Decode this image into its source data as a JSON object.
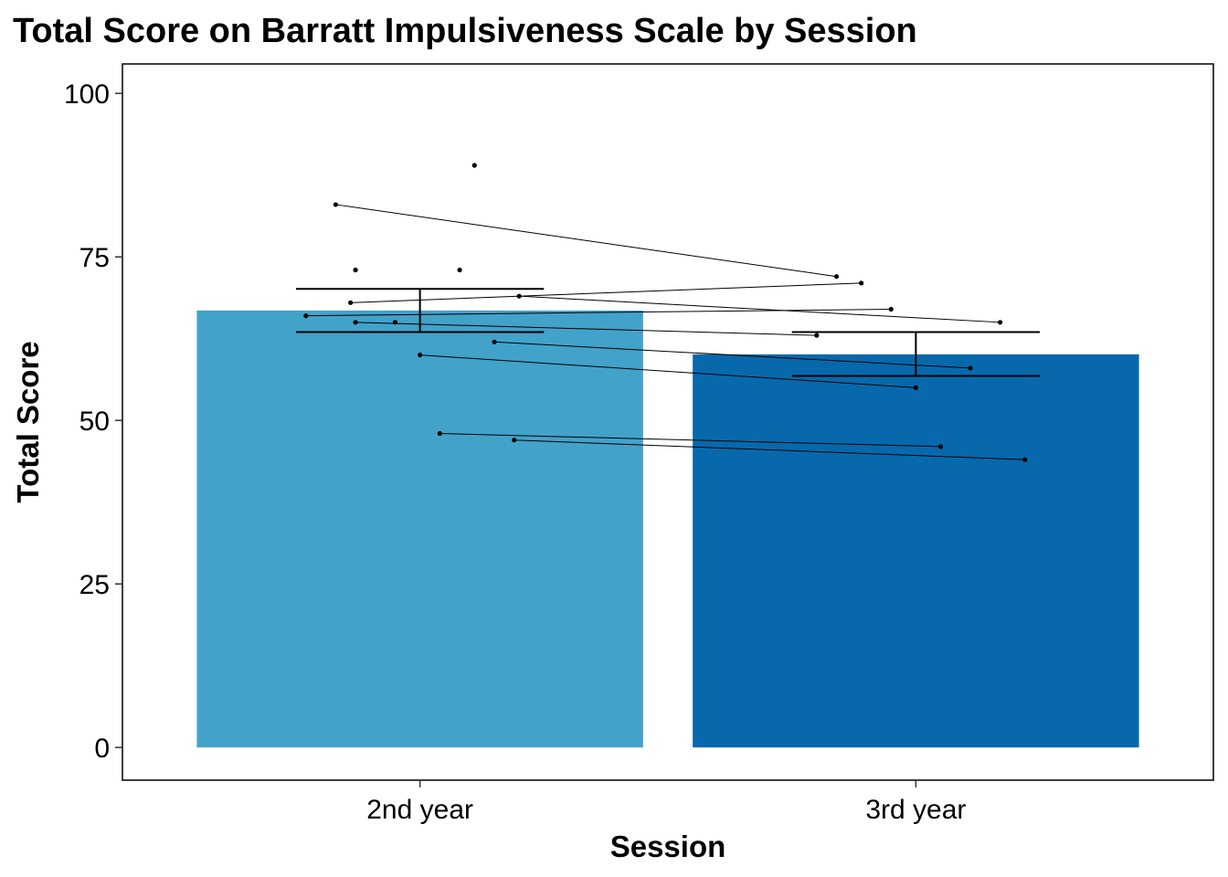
{
  "chart_data": {
    "type": "bar",
    "title": "Total Score on Barratt Impulsiveness Scale by Session",
    "xlabel": "Session",
    "ylabel": "Total Score",
    "categories": [
      "2nd year",
      "3rd year"
    ],
    "values": [
      66.8,
      60.1
    ],
    "error_bars": [
      {
        "low": 63.5,
        "high": 70.1
      },
      {
        "low": 56.8,
        "high": 63.5
      }
    ],
    "bar_colors": [
      "#43A2CA",
      "#0868AC"
    ],
    "ylim": [
      -5,
      104.5
    ],
    "yticks": [
      0,
      25,
      50,
      75,
      100
    ],
    "grid": false,
    "points": {
      "2nd year": [
        {
          "x": 0.77,
          "y": 66
        },
        {
          "x": 0.83,
          "y": 83
        },
        {
          "x": 0.86,
          "y": 68
        },
        {
          "x": 0.87,
          "y": 73
        },
        {
          "x": 0.87,
          "y": 65
        },
        {
          "x": 0.95,
          "y": 65
        },
        {
          "x": 1.0,
          "y": 60
        },
        {
          "x": 1.04,
          "y": 48
        },
        {
          "x": 1.08,
          "y": 73
        },
        {
          "x": 1.11,
          "y": 89
        },
        {
          "x": 1.15,
          "y": 62
        },
        {
          "x": 1.19,
          "y": 47
        },
        {
          "x": 1.2,
          "y": 69
        }
      ],
      "3rd year": [
        {
          "x": 1.8,
          "y": 63
        },
        {
          "x": 1.84,
          "y": 72
        },
        {
          "x": 1.89,
          "y": 71
        },
        {
          "x": 1.95,
          "y": 67
        },
        {
          "x": 2.0,
          "y": 55
        },
        {
          "x": 2.05,
          "y": 46
        },
        {
          "x": 2.11,
          "y": 58
        },
        {
          "x": 2.17,
          "y": 65
        },
        {
          "x": 2.22,
          "y": 44
        }
      ]
    },
    "paired_lines": [
      {
        "x1": 0.83,
        "y1": 83,
        "x2": 1.84,
        "y2": 72
      },
      {
        "x1": 0.86,
        "y1": 68,
        "x2": 1.89,
        "y2": 71
      },
      {
        "x1": 1.2,
        "y1": 69,
        "x2": 2.17,
        "y2": 65
      },
      {
        "x1": 0.77,
        "y1": 66,
        "x2": 1.95,
        "y2": 67
      },
      {
        "x1": 0.87,
        "y1": 65,
        "x2": 1.8,
        "y2": 63
      },
      {
        "x1": 1.15,
        "y1": 62,
        "x2": 2.11,
        "y2": 58
      },
      {
        "x1": 1.0,
        "y1": 60,
        "x2": 2.0,
        "y2": 55
      },
      {
        "x1": 1.04,
        "y1": 48,
        "x2": 2.05,
        "y2": 46
      },
      {
        "x1": 1.19,
        "y1": 47,
        "x2": 2.22,
        "y2": 44
      }
    ]
  }
}
